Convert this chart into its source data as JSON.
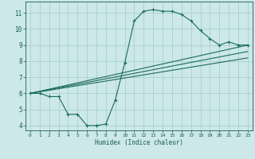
{
  "xlabel": "Humidex (Indice chaleur)",
  "ylabel": "",
  "bg_color": "#cce8e8",
  "grid_color": "#aacfcf",
  "line_color": "#1a6b5a",
  "xlim": [
    -0.5,
    23.5
  ],
  "ylim": [
    3.7,
    11.7
  ],
  "xticks": [
    0,
    1,
    2,
    3,
    4,
    5,
    6,
    7,
    8,
    9,
    10,
    11,
    12,
    13,
    14,
    15,
    16,
    17,
    18,
    19,
    20,
    21,
    22,
    23
  ],
  "yticks": [
    4,
    5,
    6,
    7,
    8,
    9,
    10,
    11
  ],
  "curve1_x": [
    0,
    1,
    2,
    3,
    4,
    5,
    6,
    7,
    8,
    9,
    10,
    11,
    12,
    13,
    14,
    15,
    16,
    17,
    18,
    19,
    20,
    21,
    22,
    23
  ],
  "curve1_y": [
    6.0,
    6.0,
    5.8,
    5.8,
    4.7,
    4.7,
    4.0,
    4.0,
    4.1,
    5.6,
    7.9,
    10.5,
    11.1,
    11.2,
    11.1,
    11.1,
    10.9,
    10.5,
    9.9,
    9.4,
    9.0,
    9.2,
    9.0,
    9.0
  ],
  "curve2_x": [
    0,
    23
  ],
  "curve2_y": [
    6.0,
    9.0
  ],
  "curve3_x": [
    0,
    23
  ],
  "curve3_y": [
    6.0,
    8.6
  ],
  "curve4_x": [
    0,
    23
  ],
  "curve4_y": [
    6.0,
    8.2
  ]
}
